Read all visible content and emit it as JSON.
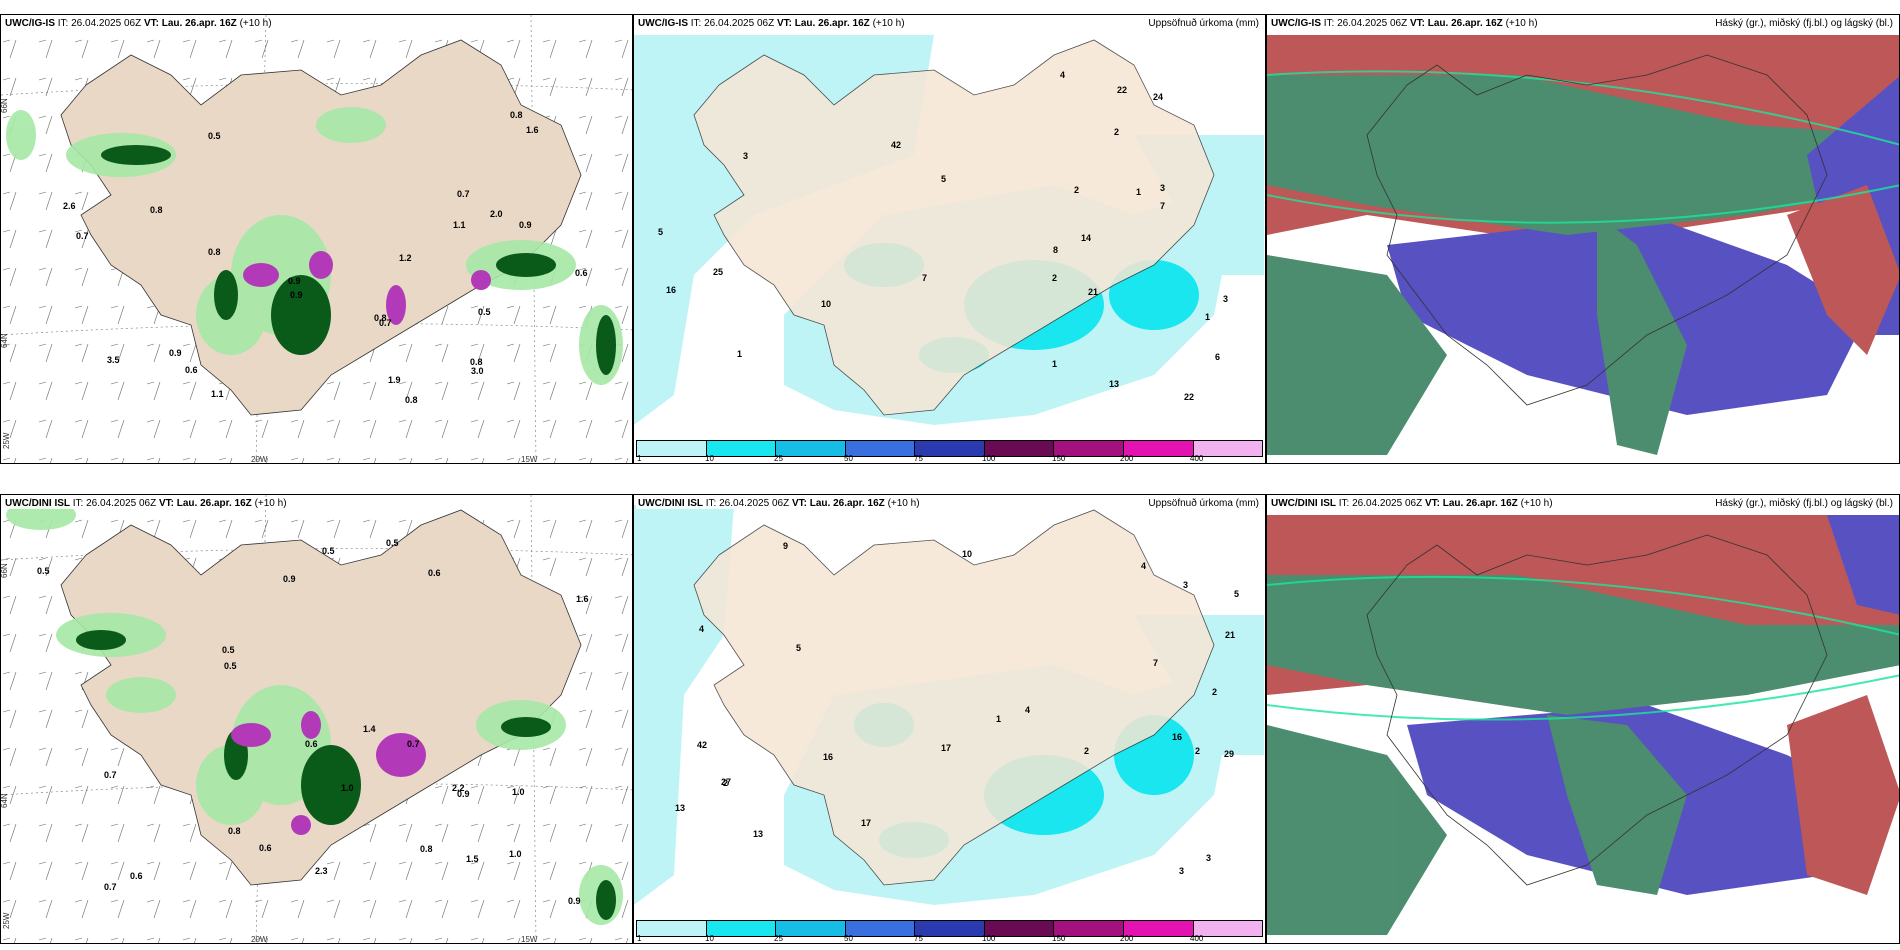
{
  "rows": [
    {
      "model": "UWC/IG-IS",
      "it_label": "IT:",
      "it_value": "26.04.2025 06Z",
      "vt_label": "VT:",
      "vt_value": "Lau. 26.apr. 16Z",
      "lead": "(+10 h)",
      "precip_title": "Uppsöfnuð úrkoma (mm)",
      "cloud_title": "Háský (gr.), miðský (fj.bl.) og lágský (bl.)",
      "axis_lat_66": "66N",
      "axis_lat_64": "64N",
      "axis_lon_25": "25W",
      "axis_lon_20": "20W",
      "axis_lon_15": "15W",
      "rate_values": [
        "0.8",
        "0.5",
        "0.9",
        "0.8",
        "2.0",
        "1.9",
        "0.6",
        "0.8",
        "0.9",
        "0.6",
        "3.5",
        "2.6",
        "0.9",
        "0.8",
        "1.1",
        "0.8",
        "0.7",
        "1.6",
        "0.5",
        "0.9",
        "0.8",
        "0.7",
        "1.1",
        "3.0",
        "1.2",
        "0.7"
      ],
      "accum_values": [
        "2",
        "3",
        "1",
        "1",
        "1",
        "2",
        "3",
        "5",
        "6",
        "13",
        "14",
        "8",
        "16",
        "21",
        "10",
        "22",
        "24",
        "25",
        "22",
        "42",
        "7",
        "5",
        "2",
        "4",
        "7",
        "1",
        "3"
      ]
    },
    {
      "model": "UWC/DINI ISL",
      "it_label": "IT:",
      "it_value": "26.04.2025 06Z",
      "vt_label": "VT:",
      "vt_value": "Lau. 26.apr. 16Z",
      "lead": "(+10 h)",
      "precip_title": "Uppsöfnuð úrkoma (mm)",
      "cloud_title": "Háský (gr.), miðský (fj.bl.) og lágský (bl.)",
      "axis_lat_66": "66N",
      "axis_lat_64": "64N",
      "axis_lon_25": "25W",
      "axis_lon_20": "20W",
      "axis_lon_15": "15W",
      "rate_values": [
        "0.7",
        "1.0",
        "1.4",
        "1.0",
        "0.9",
        "0.5",
        "1.0",
        "0.6",
        "1.5",
        "0.8",
        "0.9",
        "0.5",
        "0.6",
        "0.5",
        "0.8",
        "0.5",
        "2.2",
        "0.7",
        "0.6",
        "1.6",
        "0.5",
        "0.6",
        "2.3",
        "0.7",
        "0.9"
      ],
      "accum_values": [
        "5",
        "2",
        "4",
        "17",
        "2",
        "2",
        "3",
        "16",
        "13",
        "9",
        "10",
        "13",
        "4",
        "21",
        "16",
        "17",
        "29",
        "42",
        "27",
        "7",
        "3",
        "4",
        "3",
        "2",
        "5",
        "1"
      ]
    }
  ],
  "legend": {
    "labels": [
      "1",
      "10",
      "25",
      "50",
      "75",
      "100",
      "150",
      "200",
      "400"
    ],
    "colors": [
      "#bff4f7",
      "#19e6ee",
      "#18bde6",
      "#3a6fe0",
      "#2a3bb0",
      "#6a0a55",
      "#a3117e",
      "#e213b1",
      "#f2b1ef"
    ]
  },
  "colors": {
    "land": "#f6e6d4",
    "land_rate": "#e9d8c6",
    "precip_light": "#bff4f7",
    "precip_med": "#19e6ee",
    "precip_heavy": "#18bde6",
    "green_light": "#a6e8a6",
    "green_dark": "#0a5a1a",
    "purple": "#b23ab8",
    "cloud_high": "#2d7a56",
    "cloud_mid": "#b33a3a",
    "cloud_low": "#3a33b8"
  }
}
